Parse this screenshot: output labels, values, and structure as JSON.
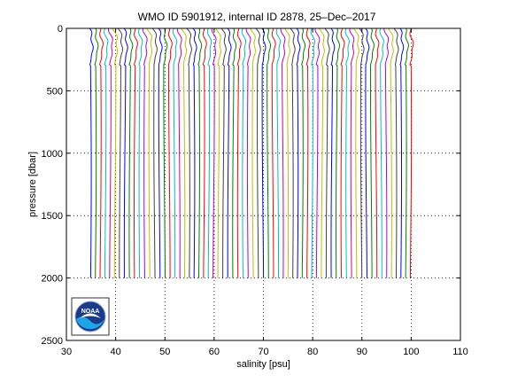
{
  "chart_data": {
    "type": "line",
    "title": "WMO ID 5901912, internal ID 2878, 25–Dec–2017",
    "xlabel": "salinity [psu]",
    "ylabel": "pressure [dbar]",
    "xlim": [
      30,
      110
    ],
    "ylim": [
      2500,
      0
    ],
    "y_reversed": true,
    "xticks": [
      30,
      40,
      50,
      60,
      70,
      80,
      90,
      100,
      110
    ],
    "yticks": [
      0,
      500,
      1000,
      1500,
      2000,
      2500
    ],
    "grid": "dotted",
    "description_series": {
      "profile_count": 66,
      "first_offset_x": 35.0,
      "offset_step": 1.0,
      "surface_x": 34.7,
      "shallow_bump_pressure": 300,
      "deep_x": 34.9,
      "max_pressure": 2000
    },
    "colors": [
      "#0000ff",
      "#008000",
      "#ff0000",
      "#00bfbf",
      "#bf00bf",
      "#bfbf00",
      "#404040"
    ]
  },
  "logo": {
    "name": "noaa-logo",
    "text": "NOAA",
    "colors": {
      "dark": "#1b3a8a",
      "light": "#1ea5e8",
      "white": "#ffffff"
    }
  }
}
